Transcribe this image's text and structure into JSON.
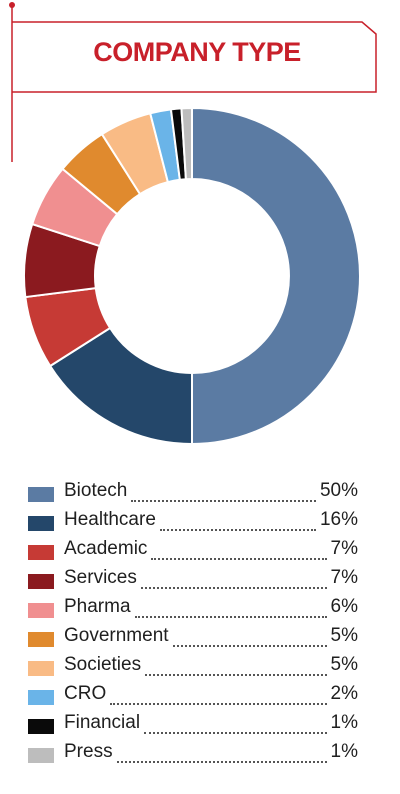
{
  "chart_data": {
    "type": "pie",
    "title": "COMPANY TYPE",
    "donut": true,
    "categories": [
      "Biotech",
      "Healthcare",
      "Academic",
      "Services",
      "Pharma",
      "Government",
      "Societies",
      "CRO",
      "Financial",
      "Press"
    ],
    "values": [
      50,
      16,
      7,
      7,
      6,
      5,
      5,
      2,
      1,
      1
    ],
    "value_labels": [
      "50%",
      "16%",
      "7%",
      "7%",
      "6%",
      "5%",
      "5%",
      "2%",
      "1%",
      "1%"
    ],
    "colors": [
      "#5b7ba3",
      "#24476a",
      "#c63a35",
      "#8b1a1f",
      "#f08f90",
      "#e08a2e",
      "#f9bb85",
      "#6ab4e8",
      "#0a0a0a",
      "#bdbdbd"
    ],
    "legend_position": "bottom",
    "grid": false
  },
  "accent_color": "#c8202a"
}
